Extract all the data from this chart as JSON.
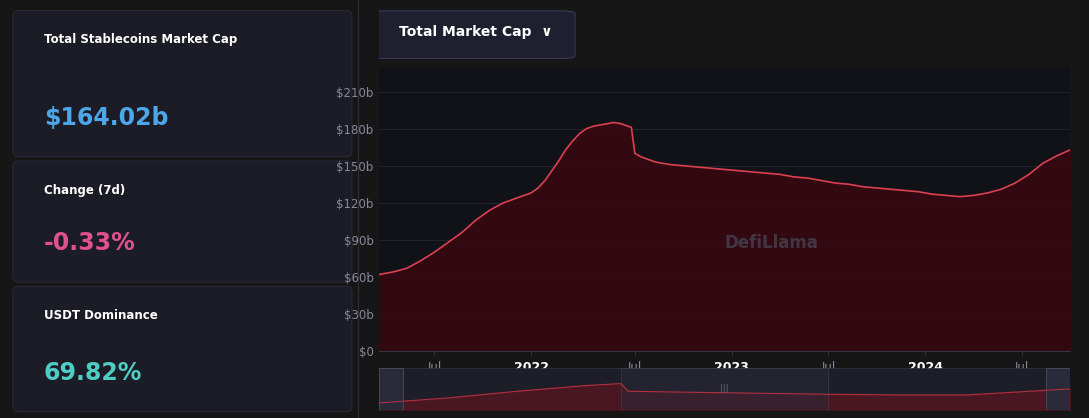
{
  "bg_color": "#161616",
  "card_bg": "#1c1c26",
  "card_border": "#2a2a3a",
  "stats": [
    {
      "label": "Total Stablecoins Market Cap",
      "value": "$164.02b",
      "value_color": "#4da6e8"
    },
    {
      "label": "Change (7d)",
      "value": "-0.33%",
      "value_color": "#e0528a"
    },
    {
      "label": "USDT Dominance",
      "value": "69.82%",
      "value_color": "#4ecdc4"
    }
  ],
  "chart_title": "Total Market Cap",
  "chart_title_arrow": "∨",
  "chart_bg": "#111118",
  "title_box_bg": "#1e2030",
  "title_box_border": "#3a3a55",
  "line_color": "#d94050",
  "fill_color_top": "#4a1020",
  "grid_color": "#252535",
  "axis_color": "#333340",
  "tick_color": "#888899",
  "yticks": [
    0,
    30,
    60,
    90,
    120,
    150,
    180,
    210
  ],
  "ytick_labels": [
    "$0",
    "$30b",
    "$60b",
    "$90b",
    "$120b",
    "$150b",
    "$180b",
    "$210b"
  ],
  "xtick_labels": [
    "Jul",
    "2022",
    "Jul",
    "2023",
    "Jul",
    "2024",
    "Jul"
  ],
  "x_positions": [
    0.08,
    0.22,
    0.37,
    0.51,
    0.65,
    0.79,
    0.93
  ],
  "watermark": "DefiLlama",
  "curve_x": [
    0.0,
    0.02,
    0.04,
    0.06,
    0.08,
    0.1,
    0.12,
    0.14,
    0.16,
    0.18,
    0.2,
    0.21,
    0.22,
    0.23,
    0.24,
    0.25,
    0.26,
    0.27,
    0.28,
    0.29,
    0.3,
    0.31,
    0.32,
    0.33,
    0.34,
    0.35,
    0.355,
    0.36,
    0.365,
    0.37,
    0.38,
    0.39,
    0.4,
    0.42,
    0.44,
    0.46,
    0.48,
    0.5,
    0.52,
    0.54,
    0.56,
    0.58,
    0.6,
    0.62,
    0.64,
    0.66,
    0.68,
    0.7,
    0.72,
    0.74,
    0.76,
    0.78,
    0.8,
    0.82,
    0.84,
    0.86,
    0.88,
    0.9,
    0.92,
    0.94,
    0.96,
    0.98,
    1.0
  ],
  "curve_y": [
    62,
    64,
    67,
    73,
    80,
    88,
    96,
    106,
    114,
    120,
    124,
    126,
    128,
    132,
    138,
    146,
    154,
    163,
    170,
    176,
    180,
    182,
    183,
    184,
    185,
    184,
    183,
    182,
    181,
    160,
    157,
    155,
    153,
    151,
    150,
    149,
    148,
    147,
    146,
    145,
    144,
    143,
    141,
    140,
    138,
    136,
    135,
    133,
    132,
    131,
    130,
    129,
    127,
    126,
    125,
    126,
    128,
    131,
    136,
    143,
    152,
    158,
    163
  ],
  "mini_curve_x": [
    0.0,
    0.1,
    0.2,
    0.3,
    0.35,
    0.36,
    0.45,
    0.55,
    0.65,
    0.75,
    0.85,
    0.95,
    1.0
  ],
  "mini_curve_y": [
    0.2,
    0.35,
    0.55,
    0.72,
    0.78,
    0.55,
    0.52,
    0.49,
    0.46,
    0.44,
    0.44,
    0.56,
    0.62
  ],
  "left_divider_color": "#2a2a3a"
}
